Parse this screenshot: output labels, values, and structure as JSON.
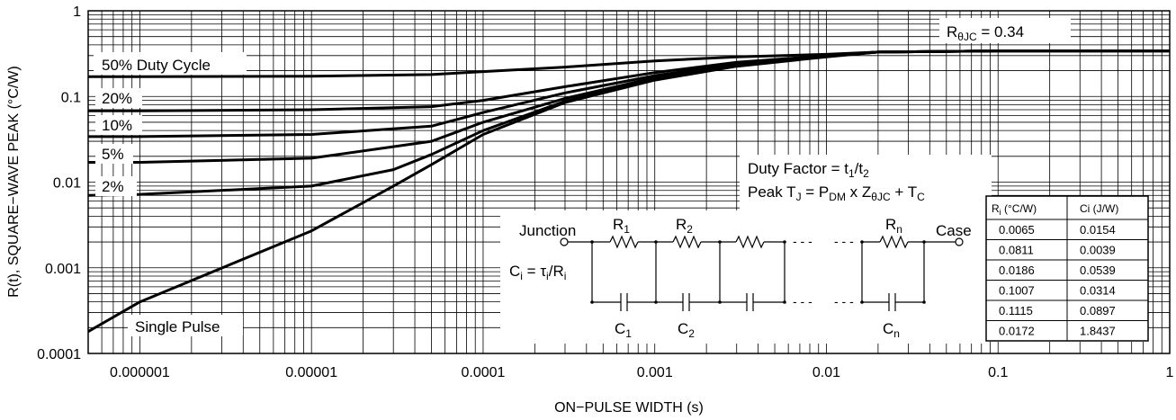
{
  "chart_data": {
    "type": "line",
    "xlabel": "ON−PULSE WIDTH (s)",
    "ylabel": "R(t), SQUARE−WAVE PEAK (°C/W)",
    "x_scale": "log",
    "y_scale": "log",
    "xlim": [
      5e-07,
      1
    ],
    "ylim": [
      0.0001,
      1
    ],
    "grid": true,
    "x_ticks": [
      {
        "value": 1e-06,
        "label": "0.000001"
      },
      {
        "value": 1e-05,
        "label": "0.00001"
      },
      {
        "value": 0.0001,
        "label": "0.0001"
      },
      {
        "value": 0.001,
        "label": "0.001"
      },
      {
        "value": 0.01,
        "label": "0.01"
      },
      {
        "value": 0.1,
        "label": "0.1"
      },
      {
        "value": 1,
        "label": "1"
      }
    ],
    "y_ticks": [
      {
        "value": 1,
        "label": "1"
      },
      {
        "value": 0.1,
        "label": "0.1"
      },
      {
        "value": 0.01,
        "label": "0.01"
      },
      {
        "value": 0.001,
        "label": "0.001"
      },
      {
        "value": 0.0001,
        "label": "0.0001"
      }
    ],
    "series": [
      {
        "name": "50% Duty Cycle",
        "points": [
          [
            5e-07,
            0.17
          ],
          [
            1e-06,
            0.17
          ],
          [
            1e-05,
            0.172
          ],
          [
            5e-05,
            0.18
          ],
          [
            0.0001,
            0.195
          ],
          [
            0.0003,
            0.22
          ],
          [
            0.001,
            0.26
          ],
          [
            0.003,
            0.29
          ],
          [
            0.01,
            0.31
          ],
          [
            0.02,
            0.33
          ],
          [
            0.1,
            0.34
          ],
          [
            1,
            0.34
          ]
        ]
      },
      {
        "name": "20%",
        "points": [
          [
            5e-07,
            0.068
          ],
          [
            1e-06,
            0.068
          ],
          [
            1e-05,
            0.07
          ],
          [
            5e-05,
            0.076
          ],
          [
            0.0001,
            0.09
          ],
          [
            0.0003,
            0.13
          ],
          [
            0.001,
            0.19
          ],
          [
            0.003,
            0.25
          ],
          [
            0.01,
            0.3
          ],
          [
            0.02,
            0.33
          ],
          [
            0.1,
            0.34
          ],
          [
            1,
            0.34
          ]
        ]
      },
      {
        "name": "10%",
        "points": [
          [
            5e-07,
            0.034
          ],
          [
            1e-06,
            0.034
          ],
          [
            1e-05,
            0.036
          ],
          [
            5e-05,
            0.045
          ],
          [
            0.0001,
            0.065
          ],
          [
            0.0003,
            0.11
          ],
          [
            0.001,
            0.175
          ],
          [
            0.003,
            0.24
          ],
          [
            0.01,
            0.3
          ],
          [
            0.02,
            0.33
          ],
          [
            0.1,
            0.34
          ],
          [
            1,
            0.34
          ]
        ]
      },
      {
        "name": "5%",
        "points": [
          [
            5e-07,
            0.017
          ],
          [
            1e-06,
            0.017
          ],
          [
            1e-05,
            0.019
          ],
          [
            5e-05,
            0.03
          ],
          [
            0.0001,
            0.05
          ],
          [
            0.0003,
            0.095
          ],
          [
            0.001,
            0.165
          ],
          [
            0.003,
            0.235
          ],
          [
            0.01,
            0.295
          ],
          [
            0.02,
            0.33
          ],
          [
            0.1,
            0.34
          ],
          [
            1,
            0.34
          ]
        ]
      },
      {
        "name": "2%",
        "points": [
          [
            5e-07,
            0.007
          ],
          [
            1e-06,
            0.0072
          ],
          [
            1e-05,
            0.009
          ],
          [
            3e-05,
            0.014
          ],
          [
            5e-05,
            0.021
          ],
          [
            0.0001,
            0.04
          ],
          [
            0.0003,
            0.088
          ],
          [
            0.001,
            0.16
          ],
          [
            0.003,
            0.23
          ],
          [
            0.01,
            0.295
          ],
          [
            0.02,
            0.33
          ],
          [
            0.1,
            0.34
          ],
          [
            1,
            0.34
          ]
        ]
      },
      {
        "name": "Single Pulse",
        "points": [
          [
            5e-07,
            0.00018
          ],
          [
            1e-06,
            0.0004
          ],
          [
            1e-05,
            0.0027
          ],
          [
            3e-05,
            0.009
          ],
          [
            5e-05,
            0.016
          ],
          [
            0.0001,
            0.036
          ],
          [
            0.0003,
            0.085
          ],
          [
            0.001,
            0.155
          ],
          [
            0.003,
            0.225
          ],
          [
            0.01,
            0.29
          ],
          [
            0.02,
            0.33
          ],
          [
            0.1,
            0.34
          ],
          [
            1,
            0.34
          ]
        ]
      }
    ],
    "annotations": {
      "rjc_main": "R",
      "rjc_sub": "θJC",
      "rjc_value": " = 0.34",
      "duty_factor": {
        "a": "Duty Factor = t",
        "b": "1",
        "c": "/t",
        "d": "2"
      },
      "peak_tj": {
        "a": "Peak T",
        "b": "J",
        "c": " = P",
        "d": "DM",
        "e": " x Z",
        "f": "θJC",
        "g": " + T",
        "h": "C"
      }
    },
    "circuit": {
      "junction": "Junction",
      "case": "Case",
      "r1": {
        "main": "R",
        "sub": "1"
      },
      "r2": {
        "main": "R",
        "sub": "2"
      },
      "rn": {
        "main": "R",
        "sub": "n"
      },
      "c1": {
        "main": "C",
        "sub": "1"
      },
      "c2": {
        "main": "C",
        "sub": "2"
      },
      "cn": {
        "main": "C",
        "sub": "n"
      },
      "ci_formula": {
        "a": "C",
        "b": "i",
        "c": " = τ",
        "d": "i",
        "e": "/R",
        "f": "i"
      },
      "ellipsis": "- - -"
    },
    "rc_table": {
      "headers": [
        {
          "main": "R",
          "sub": "i",
          "rest": " (°C/W)"
        },
        {
          "main": "Ci (J/W)",
          "sub": "",
          "rest": ""
        }
      ],
      "rows": [
        [
          "0.0065",
          "0.0154"
        ],
        [
          "0.0811",
          "0.0039"
        ],
        [
          "0.0186",
          "0.0539"
        ],
        [
          "0.1007",
          "0.0314"
        ],
        [
          "0.1115",
          "0.0897"
        ],
        [
          "0.0172",
          "1.8437"
        ]
      ]
    }
  }
}
